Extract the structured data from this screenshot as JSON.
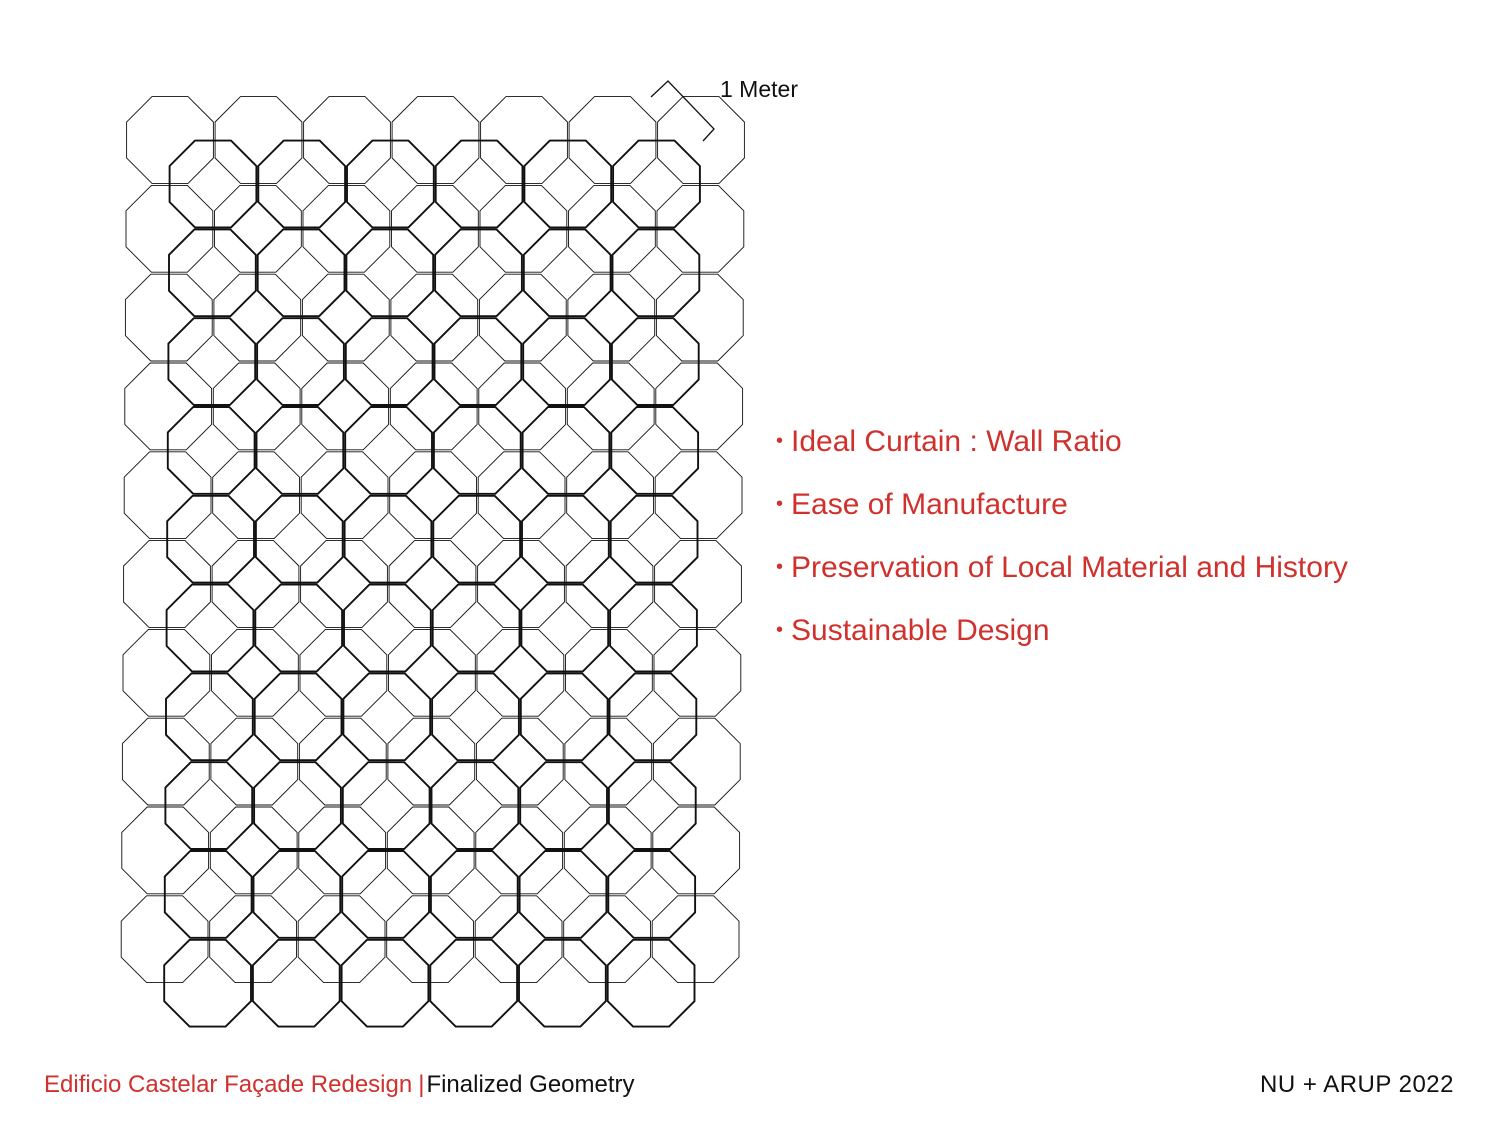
{
  "colors": {
    "accent": "#d0312d",
    "text": "#111111",
    "line": "#111111"
  },
  "scale": {
    "label": "1 Meter"
  },
  "principles": [
    "Ideal Curtain : Wall Ratio",
    "Ease of Manufacture",
    "Preservation of Local Material and History",
    "Sustainable Design"
  ],
  "footer": {
    "project": "Edificio Castelar Façade Redesign",
    "separator": "|",
    "subtitle": "Finalized Geometry",
    "credit": "NU + ARUP 2022"
  }
}
